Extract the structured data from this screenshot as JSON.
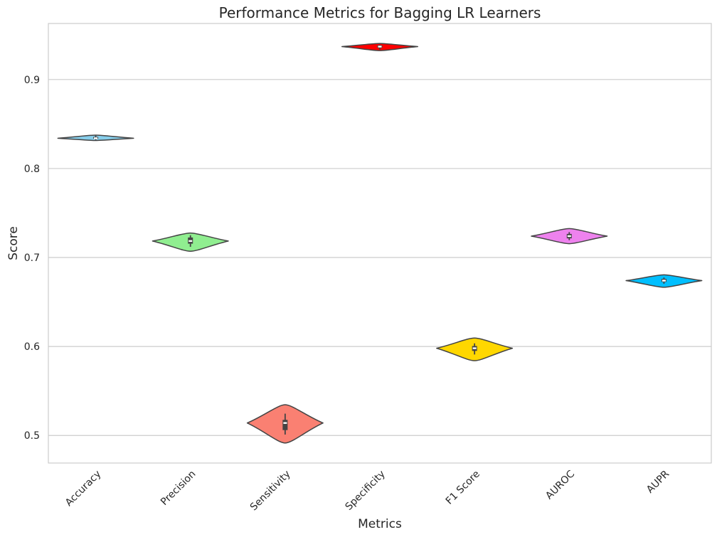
{
  "chart_data": {
    "type": "violin",
    "title": "Performance Metrics for Bagging LR Learners",
    "xlabel": "Metrics",
    "ylabel": "Score",
    "ylim": [
      0.469,
      0.963
    ],
    "yticks": [
      "0.5",
      "0.6",
      "0.7",
      "0.8",
      "0.9"
    ],
    "grid": "horizontal",
    "categories": [
      "Accuracy",
      "Precision",
      "Sensitivity",
      "Specificity",
      "F1 Score",
      "AUROC",
      "AUPR"
    ],
    "series": [
      {
        "category": "Accuracy",
        "color": "#87ceeb",
        "min": 0.8315,
        "max": 0.8375,
        "median": 0.834,
        "q1": 0.8335,
        "q3": 0.8355,
        "whisker_low": 0.832,
        "whisker_high": 0.837
      },
      {
        "category": "Precision",
        "color": "#90ee90",
        "min": 0.707,
        "max": 0.7275,
        "median": 0.7185,
        "q1": 0.7155,
        "q3": 0.7225,
        "whisker_low": 0.712,
        "whisker_high": 0.725
      },
      {
        "category": "Sensitivity",
        "color": "#fa8072",
        "min": 0.4915,
        "max": 0.5345,
        "median": 0.514,
        "q1": 0.506,
        "q3": 0.5175,
        "whisker_low": 0.501,
        "whisker_high": 0.5245
      },
      {
        "category": "Specificity",
        "color": "#ff0000",
        "min": 0.9325,
        "max": 0.9405,
        "median": 0.937,
        "q1": 0.9355,
        "q3": 0.9385,
        "whisker_low": 0.9335,
        "whisker_high": 0.939
      },
      {
        "category": "F1 Score",
        "color": "#ffd700",
        "min": 0.584,
        "max": 0.6095,
        "median": 0.598,
        "q1": 0.595,
        "q3": 0.6005,
        "whisker_low": 0.591,
        "whisker_high": 0.6035
      },
      {
        "category": "AUROC",
        "color": "#ee82ee",
        "min": 0.7155,
        "max": 0.7325,
        "median": 0.724,
        "q1": 0.7215,
        "q3": 0.7265,
        "whisker_low": 0.7195,
        "whisker_high": 0.7285
      },
      {
        "category": "AUPR",
        "color": "#00bfff",
        "min": 0.6665,
        "max": 0.6805,
        "median": 0.674,
        "q1": 0.6725,
        "q3": 0.676,
        "whisker_low": 0.6705,
        "whisker_high": 0.6775
      }
    ]
  }
}
